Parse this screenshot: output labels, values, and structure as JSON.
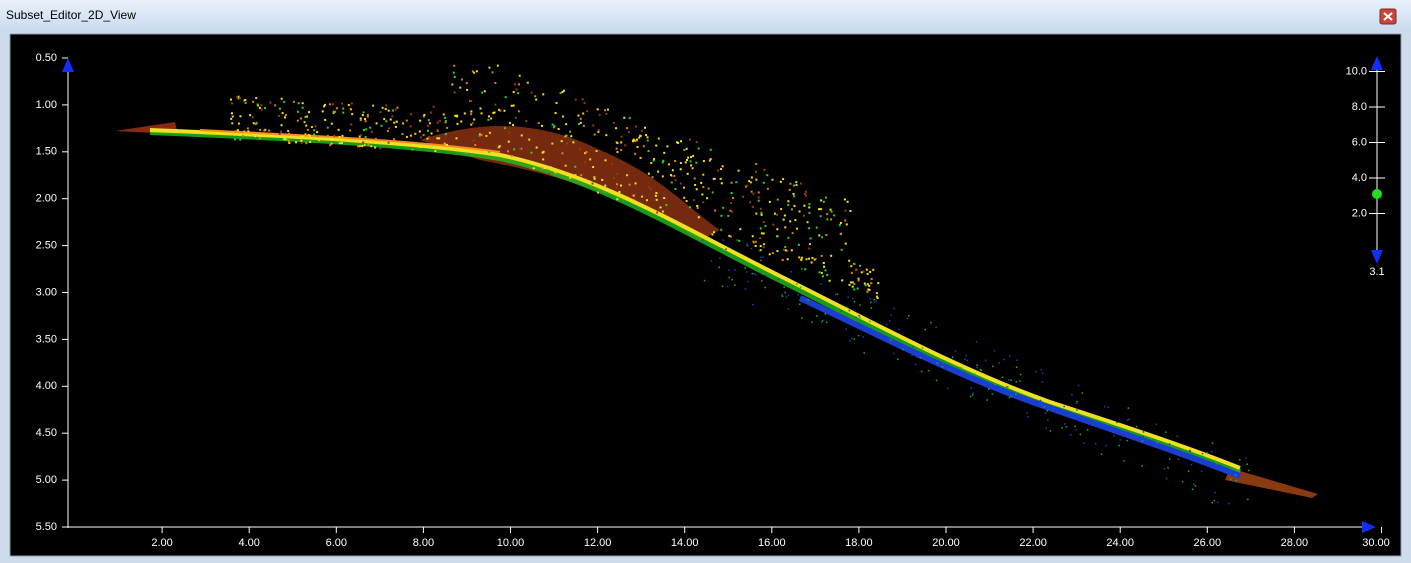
{
  "window": {
    "title": "Subset_Editor_2D_View"
  },
  "plot": {
    "y_ticks": [
      {
        "value": 0.5,
        "label": "0.50"
      },
      {
        "value": 1,
        "label": "1.00"
      },
      {
        "value": 1.5,
        "label": "1.50"
      },
      {
        "value": 2,
        "label": "2.00"
      },
      {
        "value": 2.5,
        "label": "2.50"
      },
      {
        "value": 3,
        "label": "3.00"
      },
      {
        "value": 3.5,
        "label": "3.50"
      },
      {
        "value": 4,
        "label": "4.00"
      },
      {
        "value": 4.5,
        "label": "4.50"
      },
      {
        "value": 5,
        "label": "5.00"
      },
      {
        "value": 5.5,
        "label": "5.50"
      }
    ],
    "x_ticks": [
      {
        "value": 2,
        "label": "2.00"
      },
      {
        "value": 4,
        "label": "4.00"
      },
      {
        "value": 6,
        "label": "6.00"
      },
      {
        "value": 8,
        "label": "8.00"
      },
      {
        "value": 10,
        "label": "10.00"
      },
      {
        "value": 12,
        "label": "12.00"
      },
      {
        "value": 14,
        "label": "14.00"
      },
      {
        "value": 16,
        "label": "16.00"
      },
      {
        "value": 18,
        "label": "18.00"
      },
      {
        "value": 20,
        "label": "20.00"
      },
      {
        "value": 22,
        "label": "22.00"
      },
      {
        "value": 24,
        "label": "24.00"
      },
      {
        "value": 26,
        "label": "26.00"
      },
      {
        "value": 28,
        "label": "28.00"
      },
      {
        "value": 30,
        "label": "30.00"
      }
    ]
  },
  "slider": {
    "ticks": [
      {
        "value": 10,
        "label": "10.0"
      },
      {
        "value": 8,
        "label": "8.0"
      },
      {
        "value": 6,
        "label": "6.0"
      },
      {
        "value": 4,
        "label": "4.0"
      },
      {
        "value": 2,
        "label": "2.0"
      }
    ],
    "current": {
      "value": 3.1,
      "label": "3.1"
    }
  }
}
